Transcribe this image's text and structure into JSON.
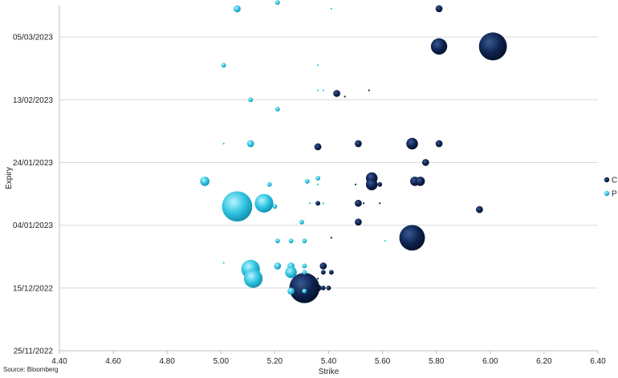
{
  "chart_data": {
    "type": "scatter",
    "subtype": "bubble",
    "xlabel": "Strike",
    "ylabel": "Expiry",
    "xlim": [
      4.4,
      6.4
    ],
    "x_ticks": [
      "4.40",
      "4.60",
      "4.80",
      "5.00",
      "5.20",
      "5.40",
      "5.60",
      "5.80",
      "6.00",
      "6.20",
      "6.40"
    ],
    "ylim": [
      "2022-11-25",
      "2023-03-15"
    ],
    "y_ticks": [
      {
        "date": "2023-03-05",
        "label": "05/03/2023"
      },
      {
        "date": "2023-02-13",
        "label": "13/02/2023"
      },
      {
        "date": "2023-01-24",
        "label": "24/01/2023"
      },
      {
        "date": "2023-01-04",
        "label": "04/01/2023"
      },
      {
        "date": "2022-12-15",
        "label": "15/12/2022"
      },
      {
        "date": "2022-11-25",
        "label": "25/11/2022"
      }
    ],
    "grid": "horizontal",
    "legend": "right",
    "source": "Source: Bloomberg",
    "series": [
      {
        "name": "C",
        "color": "#0d2350",
        "points": [
          {
            "x": 5.81,
            "y": "2023-03-14",
            "size": 3
          },
          {
            "x": 5.81,
            "y": "2023-03-02",
            "size": 7
          },
          {
            "x": 6.01,
            "y": "2023-03-02",
            "size": 12
          },
          {
            "x": 5.43,
            "y": "2023-02-15",
            "size": 3
          },
          {
            "x": 5.46,
            "y": "2023-02-14",
            "size": 1
          },
          {
            "x": 5.55,
            "y": "2023-02-16",
            "size": 1
          },
          {
            "x": 5.36,
            "y": "2023-01-29",
            "size": 3
          },
          {
            "x": 5.51,
            "y": "2023-01-30",
            "size": 3
          },
          {
            "x": 5.71,
            "y": "2023-01-30",
            "size": 5
          },
          {
            "x": 5.81,
            "y": "2023-01-30",
            "size": 3
          },
          {
            "x": 5.76,
            "y": "2023-01-24",
            "size": 3
          },
          {
            "x": 5.56,
            "y": "2023-01-19",
            "size": 5
          },
          {
            "x": 5.56,
            "y": "2023-01-17",
            "size": 5
          },
          {
            "x": 5.59,
            "y": "2023-01-17",
            "size": 2
          },
          {
            "x": 5.5,
            "y": "2023-01-17",
            "size": 1
          },
          {
            "x": 5.72,
            "y": "2023-01-18",
            "size": 4
          },
          {
            "x": 5.74,
            "y": "2023-01-18",
            "size": 4
          },
          {
            "x": 5.36,
            "y": "2023-01-11",
            "size": 2
          },
          {
            "x": 5.51,
            "y": "2023-01-11",
            "size": 3
          },
          {
            "x": 5.53,
            "y": "2023-01-11",
            "size": 1
          },
          {
            "x": 5.59,
            "y": "2023-01-11",
            "size": 1
          },
          {
            "x": 5.96,
            "y": "2023-01-09",
            "size": 3
          },
          {
            "x": 5.51,
            "y": "2023-01-05",
            "size": 3
          },
          {
            "x": 5.71,
            "y": "2022-12-31",
            "size": 11
          },
          {
            "x": 5.41,
            "y": "2022-12-31",
            "size": 1
          },
          {
            "x": 5.38,
            "y": "2022-12-22",
            "size": 3
          },
          {
            "x": 5.41,
            "y": "2022-12-20",
            "size": 2
          },
          {
            "x": 5.38,
            "y": "2022-12-20",
            "size": 2
          },
          {
            "x": 5.36,
            "y": "2022-12-18",
            "size": 1
          },
          {
            "x": 5.31,
            "y": "2022-12-15",
            "size": 13
          },
          {
            "x": 5.36,
            "y": "2022-12-15",
            "size": 3
          },
          {
            "x": 5.38,
            "y": "2022-12-15",
            "size": 2
          },
          {
            "x": 5.4,
            "y": "2022-12-15",
            "size": 2
          }
        ]
      },
      {
        "name": "P",
        "color": "#2ec4e0",
        "points": [
          {
            "x": 5.06,
            "y": "2023-03-14",
            "size": 3
          },
          {
            "x": 5.21,
            "y": "2023-03-16",
            "size": 2
          },
          {
            "x": 5.41,
            "y": "2023-03-14",
            "size": 1
          },
          {
            "x": 5.01,
            "y": "2023-02-24",
            "size": 2
          },
          {
            "x": 5.36,
            "y": "2023-02-24",
            "size": 1
          },
          {
            "x": 5.36,
            "y": "2023-02-16",
            "size": 1
          },
          {
            "x": 5.38,
            "y": "2023-02-16",
            "size": 1
          },
          {
            "x": 5.11,
            "y": "2023-02-13",
            "size": 2
          },
          {
            "x": 5.21,
            "y": "2023-02-10",
            "size": 2
          },
          {
            "x": 5.01,
            "y": "2023-01-30",
            "size": 1
          },
          {
            "x": 5.11,
            "y": "2023-01-30",
            "size": 3
          },
          {
            "x": 4.94,
            "y": "2023-01-18",
            "size": 4
          },
          {
            "x": 5.18,
            "y": "2023-01-17",
            "size": 2
          },
          {
            "x": 5.32,
            "y": "2023-01-18",
            "size": 2
          },
          {
            "x": 5.36,
            "y": "2023-01-19",
            "size": 2
          },
          {
            "x": 5.36,
            "y": "2023-01-17",
            "size": 1
          },
          {
            "x": 5.06,
            "y": "2023-01-10",
            "size": 13
          },
          {
            "x": 5.16,
            "y": "2023-01-11",
            "size": 8
          },
          {
            "x": 5.2,
            "y": "2023-01-10",
            "size": 2
          },
          {
            "x": 5.33,
            "y": "2023-01-11",
            "size": 1
          },
          {
            "x": 5.38,
            "y": "2023-01-11",
            "size": 1
          },
          {
            "x": 5.3,
            "y": "2023-01-05",
            "size": 2
          },
          {
            "x": 5.21,
            "y": "2022-12-30",
            "size": 2
          },
          {
            "x": 5.26,
            "y": "2022-12-30",
            "size": 2
          },
          {
            "x": 5.31,
            "y": "2022-12-30",
            "size": 2
          },
          {
            "x": 5.61,
            "y": "2022-12-30",
            "size": 1
          },
          {
            "x": 5.01,
            "y": "2022-12-23",
            "size": 1
          },
          {
            "x": 5.11,
            "y": "2022-12-21",
            "size": 8
          },
          {
            "x": 5.12,
            "y": "2022-12-18",
            "size": 8
          },
          {
            "x": 5.21,
            "y": "2022-12-22",
            "size": 3
          },
          {
            "x": 5.26,
            "y": "2022-12-22",
            "size": 3
          },
          {
            "x": 5.26,
            "y": "2022-12-20",
            "size": 5
          },
          {
            "x": 5.31,
            "y": "2022-12-22",
            "size": 2
          },
          {
            "x": 5.31,
            "y": "2022-12-20",
            "size": 2
          },
          {
            "x": 5.26,
            "y": "2022-12-14",
            "size": 3
          },
          {
            "x": 5.31,
            "y": "2022-12-14",
            "size": 2
          }
        ]
      }
    ]
  }
}
